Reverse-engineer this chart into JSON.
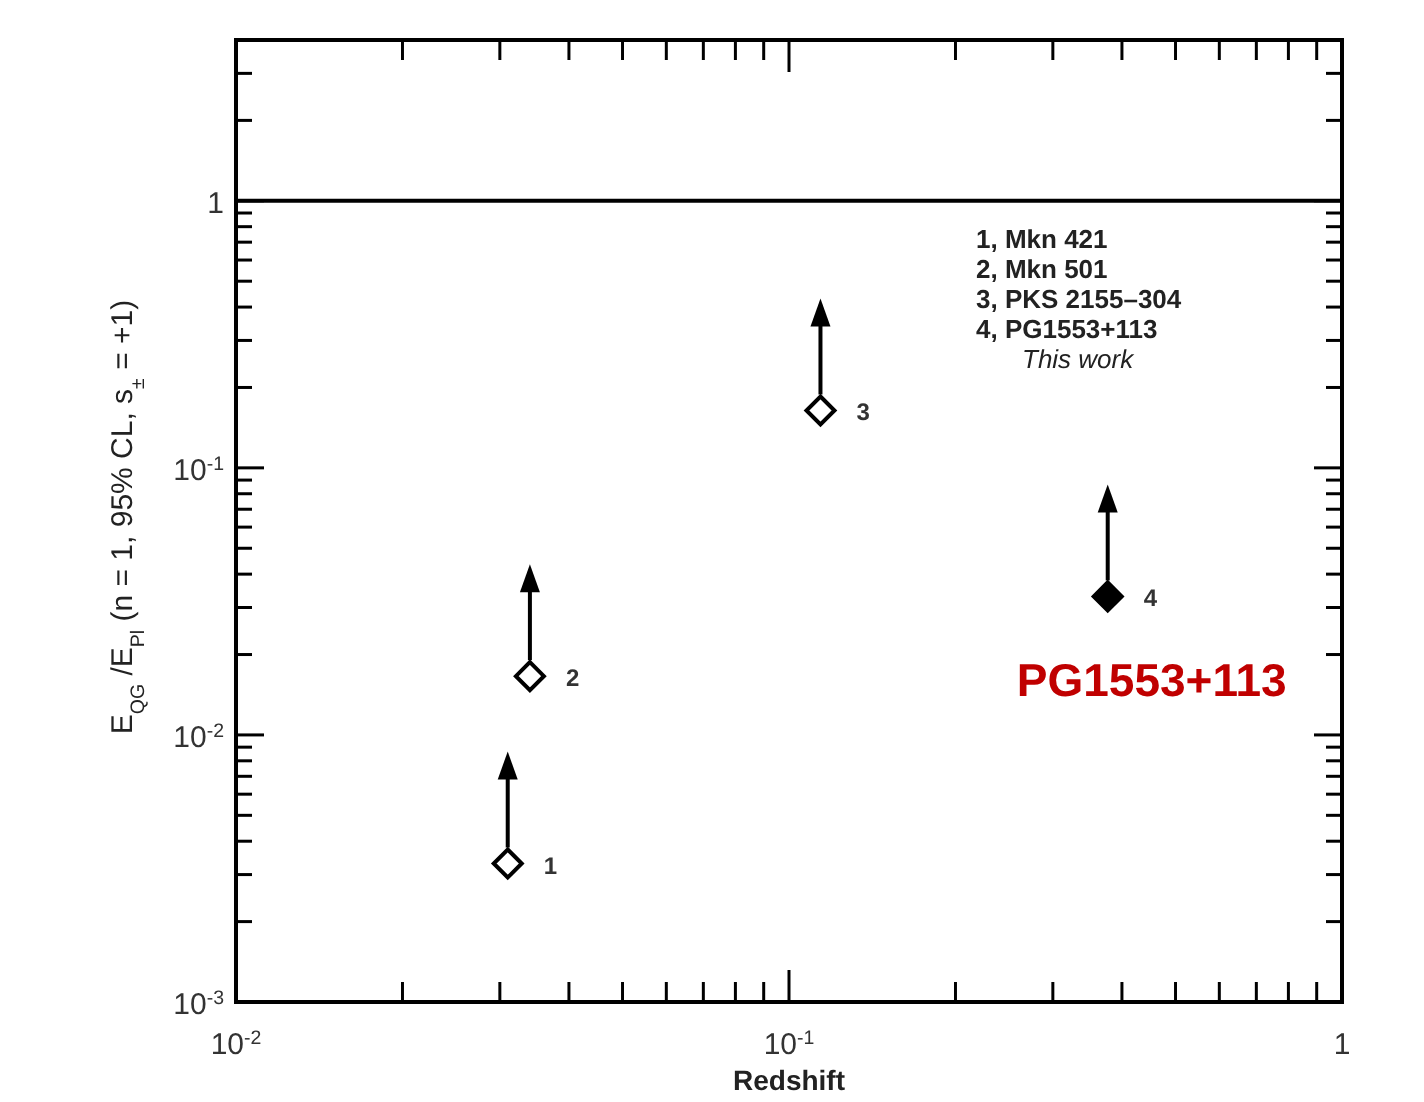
{
  "chart_data": {
    "type": "scatter",
    "xlabel": "Redshift",
    "ylabel": "E$_{QG}$ /E$_{Pl}$  (n = 1, 95% CL, s$_{±}$ = +1)",
    "log": "xy",
    "marker": "diamond",
    "grid": false,
    "xlim": [
      0.01,
      1
    ],
    "ylim": [
      0.001,
      4
    ],
    "xticks": [
      {
        "value": 0.01,
        "label": "10$^{-2}$"
      },
      {
        "value": 0.02,
        "label": null
      },
      {
        "value": 0.03,
        "label": null
      },
      {
        "value": 0.04,
        "label": null
      },
      {
        "value": 0.05,
        "label": null
      },
      {
        "value": 0.06,
        "label": null
      },
      {
        "value": 0.07,
        "label": null
      },
      {
        "value": 0.08,
        "label": null
      },
      {
        "value": 0.09,
        "label": null
      },
      {
        "value": 0.1,
        "label": "10$^{-1}$"
      },
      {
        "value": 0.2,
        "label": null
      },
      {
        "value": 0.3,
        "label": null
      },
      {
        "value": 0.4,
        "label": null
      },
      {
        "value": 0.5,
        "label": null
      },
      {
        "value": 0.6,
        "label": null
      },
      {
        "value": 0.7,
        "label": null
      },
      {
        "value": 0.8,
        "label": null
      },
      {
        "value": 0.9,
        "label": null
      },
      1
    ],
    "yticks": [
      {
        "value": 0.001,
        "label": "10$^{-3}$"
      },
      {
        "value": 0.002,
        "label": null
      },
      {
        "value": 0.003,
        "label": null
      },
      {
        "value": 0.004,
        "label": null
      },
      {
        "value": 0.005,
        "label": null
      },
      {
        "value": 0.006,
        "label": null
      },
      {
        "value": 0.007,
        "label": null
      },
      {
        "value": 0.008,
        "label": null
      },
      {
        "value": 0.009,
        "label": null
      },
      {
        "value": 0.01,
        "label": "10$^{-2}$"
      },
      {
        "value": 0.02,
        "label": null
      },
      {
        "value": 0.03,
        "label": null
      },
      {
        "value": 0.04,
        "label": null
      },
      {
        "value": 0.05,
        "label": null
      },
      {
        "value": 0.06,
        "label": null
      },
      {
        "value": 0.07,
        "label": null
      },
      {
        "value": 0.08,
        "label": null
      },
      {
        "value": 0.09,
        "label": null
      },
      {
        "value": 0.1,
        "label": "10$^{-1}$"
      },
      {
        "value": 0.2,
        "label": null
      },
      {
        "value": 0.3,
        "label": null
      },
      {
        "value": 0.4,
        "label": null
      },
      {
        "value": 0.5,
        "label": null
      },
      {
        "value": 0.6,
        "label": null
      },
      {
        "value": 0.7,
        "label": null
      },
      {
        "value": 0.8,
        "label": null
      },
      {
        "value": 0.9,
        "label": null
      },
      1,
      {
        "value": 2,
        "label": null
      },
      {
        "value": 3,
        "label": null
      },
      {
        "value": 4,
        "label": null
      }
    ],
    "x": [
      0.031,
      0.034,
      0.114,
      0.377
    ],
    "series": [
      {
        "color": "#000000",
        "colors": [
          "#ffffff",
          "#ffffff",
          "#ffffff",
          "#000000"
        ],
        "values": [
          0.0033,
          0.0166,
          0.164,
          0.033
        ]
      }
    ],
    "ref_lines": [
      {
        "axis": "y",
        "value": 1,
        "color": "#000000",
        "line_style": "solid"
      }
    ],
    "annotations": [
      "1, Mkn 421",
      "2, Mkn 501",
      "3, PKS 2155–304",
      "4, PG1553+113",
      "This work",
      {
        "text": "1",
        "x": 0.031,
        "y": 0.0033
      },
      {
        "text": "2",
        "x": 0.034,
        "y": 0.0166
      },
      {
        "text": "3",
        "x": 0.114,
        "y": 0.164
      },
      {
        "text": "4",
        "x": 0.377,
        "y": 0.033
      },
      {
        "text": "PG1553+113",
        "x": 0.377,
        "y": 0.033
      }
    ]
  }
}
